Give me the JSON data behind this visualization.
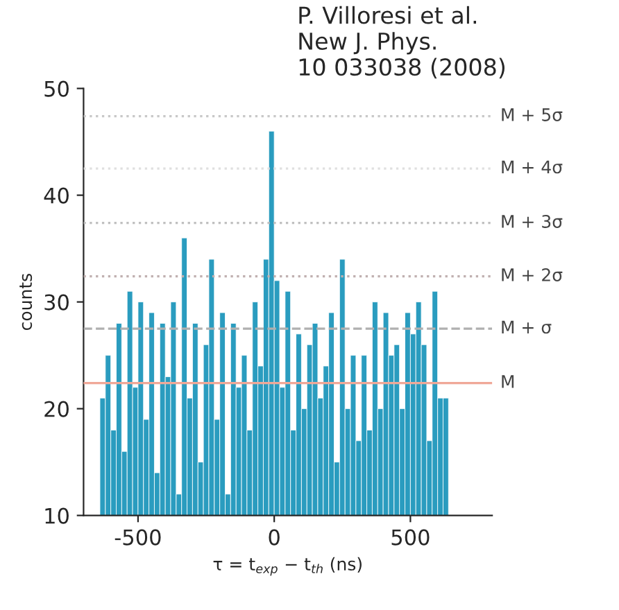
{
  "chart_data": {
    "type": "histogram",
    "xlabel": "τ = t$_{exp}$ − t$_{th}$ (ns)",
    "ylabel": "counts",
    "annotations": [
      "P. Villoresi et al.\nNew J. Phys.\n10 033038 (2008)"
    ],
    "bins": [
      -640,
      -620,
      -600,
      -580,
      -560,
      -540,
      -520,
      -500,
      -480,
      -460,
      -440,
      -420,
      -400,
      -380,
      -360,
      -340,
      -320,
      -300,
      -280,
      -260,
      -240,
      -220,
      -200,
      -180,
      -160,
      -140,
      -120,
      -100,
      -80,
      -60,
      -40,
      -20,
      0,
      20,
      40,
      60,
      80,
      100,
      120,
      140,
      160,
      180,
      200,
      220,
      240,
      260,
      280,
      300,
      320,
      340,
      360,
      380,
      400,
      420,
      440,
      460,
      480,
      500,
      520,
      540,
      560,
      580,
      600,
      620,
      640
    ],
    "values": [
      21,
      25,
      18,
      28,
      16,
      31,
      22,
      30,
      19,
      29,
      14,
      28,
      23,
      30,
      12,
      36,
      21,
      28,
      15,
      26,
      34,
      19,
      29,
      12,
      28,
      22,
      25,
      18,
      30,
      24,
      34,
      46,
      32,
      22,
      31,
      18,
      27,
      20,
      26,
      28,
      21,
      24,
      29,
      15,
      34,
      20,
      25,
      17,
      25,
      18,
      30,
      20,
      29,
      25,
      26,
      20,
      29,
      27,
      30,
      26,
      17,
      31,
      21,
      21
    ],
    "color": "#2a9cbf",
    "xlim": [
      -700,
      800
    ],
    "ylim": [
      10,
      50
    ],
    "xticks": [
      -500,
      0,
      500
    ],
    "yticks": [
      10,
      20,
      30,
      40,
      50
    ],
    "grid": false,
    "ref_lines": [
      {
        "axis": "y",
        "value": 22.4,
        "label": "M",
        "color": "#f0a898",
        "line_style": "solid"
      },
      {
        "axis": "y",
        "value": 27.5,
        "label": "M + σ",
        "color": "#b0b0b0",
        "line_style": "dashed"
      },
      {
        "axis": "y",
        "value": 32.4,
        "label": "M + 2σ",
        "color": "#c0b0b0",
        "line_style": "dotted"
      },
      {
        "axis": "y",
        "value": 37.4,
        "label": "M + 3σ",
        "color": "#c0c0c0",
        "line_style": "dotted"
      },
      {
        "axis": "y",
        "value": 42.5,
        "label": "M + 4σ",
        "color": "#e0e0e0",
        "line_style": "dotted"
      },
      {
        "axis": "y",
        "value": 47.4,
        "label": "M + 5σ",
        "color": "#c8c8c8",
        "line_style": "dotted"
      }
    ]
  }
}
